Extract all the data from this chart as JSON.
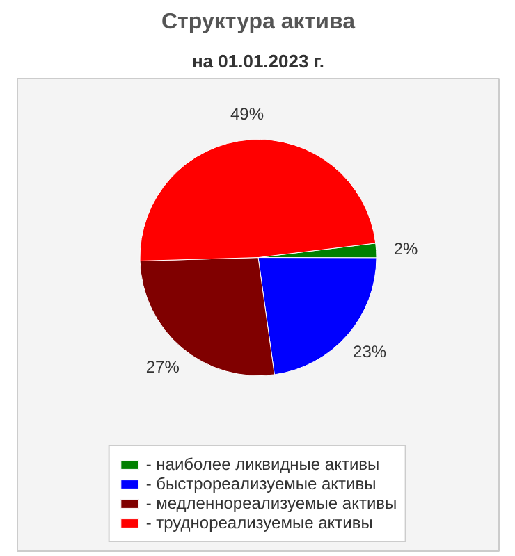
{
  "chart_data": {
    "type": "pie",
    "title": "Структура актива",
    "subtitle": "на 01.01.2023 г.",
    "categories": [
      "- наиболее ликвидные активы",
      "- быстрореализуемые активы",
      "- медленнореализуемые активы",
      "- труднореализуемые активы"
    ],
    "values": [
      2,
      23,
      27,
      49
    ],
    "colors": [
      "#008000",
      "#0000ff",
      "#800000",
      "#ff0000"
    ],
    "value_labels": [
      "2%",
      "23%",
      "27%",
      "49%"
    ],
    "legend": "bottom"
  }
}
